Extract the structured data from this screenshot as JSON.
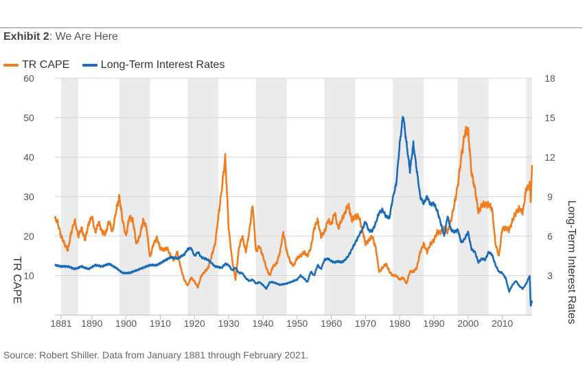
{
  "exhibit": {
    "label": "Exhibit 2",
    "separator": ": ",
    "subtitle": "We Are Here"
  },
  "legend": [
    {
      "name": "TR CAPE",
      "color": "#ef7d22"
    },
    {
      "name": "Long-Term Interest Rates",
      "color": "#1a6bb8"
    }
  ],
  "source": "Source: Robert Shiller. Data from January 1881 through February 2021.",
  "chart_data": {
    "type": "line",
    "title": "We Are Here",
    "x_range": [
      1879.2,
      2018.7
    ],
    "x_ticks": [
      "1881",
      "1890",
      "1900",
      "1910",
      "1920",
      "1930",
      "1940",
      "1950",
      "1960",
      "1970",
      "1980",
      "1990",
      "2000",
      "2010"
    ],
    "y_left": {
      "label": "TR CAPE",
      "range": [
        0,
        60
      ],
      "ticks": [
        "10",
        "20",
        "30",
        "40",
        "50",
        "60"
      ]
    },
    "y_right": {
      "label": "Long-Term Interest Rates",
      "range": [
        0,
        18
      ],
      "ticks": [
        "3",
        "6",
        "9",
        "12",
        "15",
        "18"
      ]
    },
    "shaded_bands": [
      [
        1881,
        1886
      ],
      [
        1898,
        1907
      ],
      [
        1918,
        1927
      ],
      [
        1938,
        1947
      ],
      [
        1958,
        1967
      ],
      [
        1978,
        1987
      ],
      [
        1997,
        2006
      ],
      [
        2017,
        2018.7
      ]
    ],
    "grid": true,
    "series": [
      {
        "name": "TR CAPE",
        "axis": "left",
        "color": "#ef7d22",
        "points": [
          [
            1879.2,
            24.5
          ],
          [
            1880,
            23.5
          ],
          [
            1881,
            20
          ],
          [
            1882,
            18
          ],
          [
            1883,
            16.5
          ],
          [
            1884,
            21
          ],
          [
            1885,
            24
          ],
          [
            1886,
            20
          ],
          [
            1887,
            22
          ],
          [
            1888,
            19
          ],
          [
            1889,
            23
          ],
          [
            1890,
            25
          ],
          [
            1891,
            21
          ],
          [
            1892,
            23.5
          ],
          [
            1893,
            21
          ],
          [
            1894,
            20.5
          ],
          [
            1895,
            24
          ],
          [
            1896,
            21
          ],
          [
            1897,
            26
          ],
          [
            1898,
            30
          ],
          [
            1899,
            24
          ],
          [
            1900,
            20
          ],
          [
            1901,
            25
          ],
          [
            1902,
            24
          ],
          [
            1903,
            18
          ],
          [
            1904,
            20
          ],
          [
            1905,
            24
          ],
          [
            1906,
            22
          ],
          [
            1907,
            14.5
          ],
          [
            1908,
            18
          ],
          [
            1909,
            19.5
          ],
          [
            1910,
            17
          ],
          [
            1911,
            16.5
          ],
          [
            1912,
            17
          ],
          [
            1913,
            15
          ],
          [
            1914,
            14
          ],
          [
            1915,
            16
          ],
          [
            1916,
            12
          ],
          [
            1917,
            9
          ],
          [
            1918,
            7.5
          ],
          [
            1919,
            9.5
          ],
          [
            1920,
            8.5
          ],
          [
            1921,
            7
          ],
          [
            1922,
            10
          ],
          [
            1923,
            11
          ],
          [
            1924,
            12
          ],
          [
            1925,
            15
          ],
          [
            1926,
            18
          ],
          [
            1927,
            25
          ],
          [
            1928,
            32
          ],
          [
            1929,
            40
          ],
          [
            1930,
            22
          ],
          [
            1931,
            14
          ],
          [
            1932,
            9
          ],
          [
            1933,
            17
          ],
          [
            1934,
            20
          ],
          [
            1935,
            16
          ],
          [
            1936,
            21
          ],
          [
            1937,
            28
          ],
          [
            1938,
            16
          ],
          [
            1939,
            17.5
          ],
          [
            1940,
            15
          ],
          [
            1941,
            12
          ],
          [
            1942,
            10
          ],
          [
            1943,
            12.5
          ],
          [
            1944,
            13
          ],
          [
            1945,
            16
          ],
          [
            1946,
            21
          ],
          [
            1947,
            16
          ],
          [
            1948,
            13.5
          ],
          [
            1949,
            12.5
          ],
          [
            1950,
            14.5
          ],
          [
            1951,
            15
          ],
          [
            1952,
            16
          ],
          [
            1953,
            15
          ],
          [
            1954,
            17
          ],
          [
            1955,
            22
          ],
          [
            1956,
            24
          ],
          [
            1957,
            20
          ],
          [
            1958,
            21
          ],
          [
            1959,
            24
          ],
          [
            1960,
            23
          ],
          [
            1961,
            26
          ],
          [
            1962,
            22
          ],
          [
            1963,
            24
          ],
          [
            1964,
            26
          ],
          [
            1965,
            28
          ],
          [
            1966,
            24
          ],
          [
            1967,
            25
          ],
          [
            1968,
            25
          ],
          [
            1969,
            22
          ],
          [
            1970,
            18
          ],
          [
            1971,
            19
          ],
          [
            1972,
            20
          ],
          [
            1973,
            17
          ],
          [
            1974,
            11
          ],
          [
            1975,
            12
          ],
          [
            1976,
            13
          ],
          [
            1977,
            11
          ],
          [
            1978,
            10
          ],
          [
            1979,
            10
          ],
          [
            1980,
            9
          ],
          [
            1981,
            9.5
          ],
          [
            1982,
            8
          ],
          [
            1983,
            11
          ],
          [
            1984,
            11
          ],
          [
            1985,
            12
          ],
          [
            1986,
            16
          ],
          [
            1987,
            18
          ],
          [
            1988,
            16
          ],
          [
            1989,
            18
          ],
          [
            1990,
            19
          ],
          [
            1991,
            21
          ],
          [
            1992,
            21
          ],
          [
            1993,
            22
          ],
          [
            1994,
            21
          ],
          [
            1995,
            24
          ],
          [
            1996,
            28
          ],
          [
            1997,
            33
          ],
          [
            1998,
            40
          ],
          [
            1999,
            46
          ],
          [
            2000,
            47
          ],
          [
            2001,
            36
          ],
          [
            2002,
            32
          ],
          [
            2003,
            26
          ],
          [
            2004,
            28
          ],
          [
            2005,
            28
          ],
          [
            2006,
            28
          ],
          [
            2007,
            27
          ],
          [
            2008,
            18
          ],
          [
            2009,
            15
          ],
          [
            2010,
            22
          ],
          [
            2011,
            22
          ],
          [
            2012,
            21.5
          ],
          [
            2013,
            24
          ],
          [
            2014,
            26
          ],
          [
            2015,
            27
          ],
          [
            2016,
            26
          ],
          [
            2017,
            32
          ],
          [
            2018,
            33
          ],
          [
            2018.3,
            29
          ],
          [
            2018.7,
            38
          ]
        ]
      },
      {
        "name": "Long-Term Interest Rates",
        "axis": "right",
        "color": "#1a6bb8",
        "points": [
          [
            1879.2,
            3.8
          ],
          [
            1881,
            3.7
          ],
          [
            1883,
            3.7
          ],
          [
            1885,
            3.5
          ],
          [
            1887,
            3.7
          ],
          [
            1889,
            3.5
          ],
          [
            1891,
            3.8
          ],
          [
            1893,
            3.7
          ],
          [
            1895,
            3.9
          ],
          [
            1897,
            3.6
          ],
          [
            1899,
            3.2
          ],
          [
            1901,
            3.2
          ],
          [
            1903,
            3.4
          ],
          [
            1905,
            3.6
          ],
          [
            1907,
            3.8
          ],
          [
            1909,
            3.8
          ],
          [
            1911,
            4.1
          ],
          [
            1913,
            4.4
          ],
          [
            1915,
            4.3
          ],
          [
            1917,
            4.6
          ],
          [
            1918,
            5
          ],
          [
            1919,
            5.1
          ],
          [
            1920,
            4.5
          ],
          [
            1921,
            4.8
          ],
          [
            1922,
            4.4
          ],
          [
            1924,
            4.2
          ],
          [
            1926,
            3.7
          ],
          [
            1928,
            3.6
          ],
          [
            1929,
            3.9
          ],
          [
            1930,
            3.8
          ],
          [
            1931,
            3.4
          ],
          [
            1932,
            3.6
          ],
          [
            1933,
            3.2
          ],
          [
            1934,
            3.2
          ],
          [
            1935,
            2.8
          ],
          [
            1936,
            2.6
          ],
          [
            1937,
            2.7
          ],
          [
            1938,
            2.4
          ],
          [
            1939,
            2.5
          ],
          [
            1940,
            2.3
          ],
          [
            1941,
            2
          ],
          [
            1942,
            2.5
          ],
          [
            1943,
            2.5
          ],
          [
            1945,
            2.3
          ],
          [
            1947,
            2.4
          ],
          [
            1949,
            2.6
          ],
          [
            1950,
            2.7
          ],
          [
            1951,
            3
          ],
          [
            1952,
            2.8
          ],
          [
            1953,
            2.5
          ],
          [
            1954,
            3.3
          ],
          [
            1955,
            3
          ],
          [
            1956,
            3.8
          ],
          [
            1957,
            3.5
          ],
          [
            1958,
            4.2
          ],
          [
            1959,
            4.3
          ],
          [
            1960,
            4.1
          ],
          [
            1961,
            4
          ],
          [
            1962,
            4.1
          ],
          [
            1963,
            4
          ],
          [
            1964,
            4.2
          ],
          [
            1965,
            4.5
          ],
          [
            1966,
            5
          ],
          [
            1967,
            5.5
          ],
          [
            1968,
            6
          ],
          [
            1969,
            6.5
          ],
          [
            1970,
            7.1
          ],
          [
            1971,
            6.4
          ],
          [
            1972,
            6.4
          ],
          [
            1973,
            7
          ],
          [
            1974,
            7.8
          ],
          [
            1975,
            8
          ],
          [
            1976,
            7.5
          ],
          [
            1977,
            7.4
          ],
          [
            1978,
            8.9
          ],
          [
            1979,
            10
          ],
          [
            1980,
            13
          ],
          [
            1981,
            15.2
          ],
          [
            1982,
            13
          ],
          [
            1983,
            11
          ],
          [
            1984,
            13
          ],
          [
            1985,
            11
          ],
          [
            1986,
            9
          ],
          [
            1987,
            8.5
          ],
          [
            1988,
            9
          ],
          [
            1989,
            8.4
          ],
          [
            1990,
            8.5
          ],
          [
            1991,
            7.9
          ],
          [
            1992,
            7
          ],
          [
            1993,
            6
          ],
          [
            1994,
            7.5
          ],
          [
            1995,
            6.5
          ],
          [
            1996,
            6.3
          ],
          [
            1997,
            6.5
          ],
          [
            1998,
            5.5
          ],
          [
            1999,
            5.8
          ],
          [
            2000,
            6.3
          ],
          [
            2001,
            5
          ],
          [
            2002,
            4.8
          ],
          [
            2003,
            4
          ],
          [
            2004,
            4.3
          ],
          [
            2005,
            4.2
          ],
          [
            2006,
            4.8
          ],
          [
            2007,
            4.6
          ],
          [
            2008,
            3.8
          ],
          [
            2009,
            3.3
          ],
          [
            2010,
            3.2
          ],
          [
            2011,
            2.8
          ],
          [
            2012,
            1.8
          ],
          [
            2013,
            2.3
          ],
          [
            2014,
            2.6
          ],
          [
            2015,
            2.2
          ],
          [
            2016,
            2
          ],
          [
            2017,
            2.4
          ],
          [
            2018,
            3
          ],
          [
            2018.3,
            0.7
          ],
          [
            2018.7,
            1.1
          ]
        ]
      }
    ]
  }
}
